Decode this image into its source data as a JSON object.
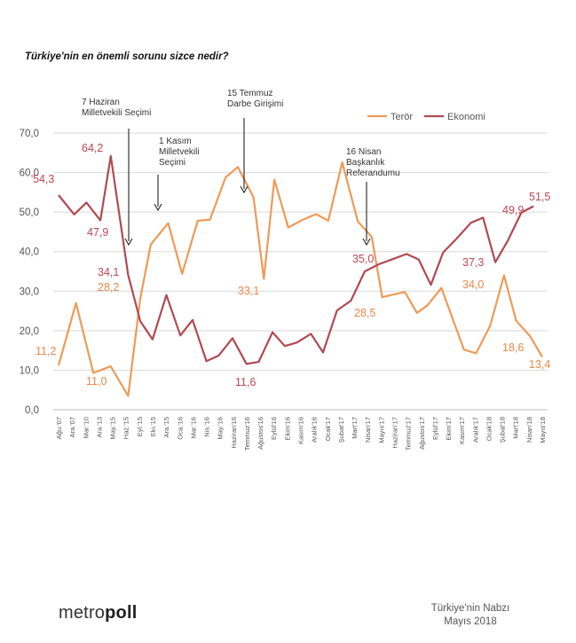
{
  "page_title": "Türkiye'nin en önemli sorunu sizce nedir?",
  "brand": {
    "part1": "metro",
    "part2": "poll"
  },
  "footer": {
    "line1": "Türkiye'nin Nabzı",
    "line2": "Mayıs 2018"
  },
  "colors": {
    "teror": "#ee9a58",
    "ekonomi": "#b04a52",
    "grid": "#d9d9d9",
    "label_teror": "#e9874a",
    "label_ekonomi": "#c04652"
  },
  "chart_data": {
    "type": "line",
    "title": "Türkiye'nin en önemli sorunu sizce nedir?",
    "ylim": [
      0,
      70
    ],
    "yticks": [
      "0,0",
      "10,0",
      "20,0",
      "30,0",
      "40,0",
      "50,0",
      "60,0",
      "70,0"
    ],
    "grid": true,
    "legend": "top-right",
    "categories": [
      "Ağu.'07",
      "Ara.'07",
      "Mar.'10",
      "Ara.'13",
      "May.'15",
      "Haz.'15",
      "Eyl.'15",
      "Eki.'15",
      "Ara.'15",
      "Oca.'16",
      "Mar.'16",
      "Nis.'16",
      "May.'16",
      "Haziran'16",
      "Temmuz'16",
      "Ağustos'16",
      "Eylül'16",
      "Ekim'16",
      "Kasım'16",
      "Aralık'16",
      "Ocak'17",
      "Şubat'17",
      "Mart'17",
      "Nisan'17",
      "Mayıs'17",
      "Haziran'17",
      "Temmuz'17",
      "Ağustos'17",
      "Eylül'17",
      "Ekim'17",
      "Kasım'17",
      "Aralık'17",
      "Ocak'18",
      "Şubat'18",
      "Mart'18",
      "Nisan'18",
      "Mayıs'18"
    ],
    "category_ticks": [
      0,
      1,
      2,
      3,
      4,
      5,
      6,
      7,
      8,
      9,
      10,
      11,
      12,
      13,
      14,
      15,
      16,
      17,
      18,
      19,
      20,
      21,
      22,
      23,
      24,
      25,
      26,
      27,
      28,
      29,
      30,
      31,
      32,
      33,
      34,
      35,
      36
    ],
    "x_positions": [
      0,
      1,
      2,
      3,
      4,
      5,
      6,
      7,
      8,
      9,
      10,
      11,
      12,
      13,
      14,
      15,
      16,
      17,
      18,
      19,
      20,
      21,
      22,
      23,
      24,
      25,
      26,
      27,
      28,
      29,
      30,
      31,
      32,
      33,
      34,
      35,
      36
    ],
    "series": [
      {
        "name": "Terör",
        "color": "#ee9a58",
        "points": [
          [
            0,
            11.2
          ],
          [
            1,
            27.0
          ],
          [
            2,
            9.3
          ],
          [
            3,
            11.0
          ],
          [
            4,
            3.5
          ],
          [
            4.7,
            28.2
          ],
          [
            5.3,
            41.8
          ],
          [
            6.3,
            47.2
          ],
          [
            7.1,
            34.4
          ],
          [
            8,
            47.8
          ],
          [
            8.7,
            48.1
          ],
          [
            9.6,
            58.8
          ],
          [
            10.3,
            61.4
          ],
          [
            11.2,
            53.8
          ],
          [
            11.8,
            33.1
          ],
          [
            12.4,
            58.2
          ],
          [
            13.2,
            46.1
          ],
          [
            14,
            48.0
          ],
          [
            14.8,
            49.5
          ],
          [
            15.5,
            47.8
          ],
          [
            16.3,
            62.6
          ],
          [
            17.2,
            47.6
          ],
          [
            18.0,
            43.7
          ],
          [
            18.6,
            28.5
          ],
          [
            19.9,
            29.8
          ],
          [
            20.6,
            24.5
          ],
          [
            21.2,
            26.4
          ],
          [
            22.0,
            30.8
          ],
          [
            23.3,
            15.2
          ],
          [
            24.0,
            14.3
          ],
          [
            24.8,
            21.2
          ],
          [
            25.6,
            34.0
          ],
          [
            26.3,
            22.5
          ],
          [
            27.1,
            18.6
          ],
          [
            27.8,
            13.4
          ]
        ]
      },
      {
        "name": "Ekonomi",
        "color": "#b04a52",
        "points": [
          [
            0,
            54.3
          ],
          [
            0.9,
            49.4
          ],
          [
            1.6,
            52.4
          ],
          [
            2.4,
            47.9
          ],
          [
            3.0,
            64.2
          ],
          [
            4.0,
            34.1
          ],
          [
            4.7,
            22.4
          ],
          [
            5.4,
            17.8
          ],
          [
            6.2,
            29.0
          ],
          [
            7.0,
            18.8
          ],
          [
            7.7,
            22.7
          ],
          [
            8.5,
            12.3
          ],
          [
            9.2,
            13.7
          ],
          [
            10.0,
            18.1
          ],
          [
            10.8,
            11.6
          ],
          [
            11.5,
            12.1
          ],
          [
            12.3,
            19.6
          ],
          [
            13.0,
            16.1
          ],
          [
            13.7,
            17.0
          ],
          [
            14.5,
            19.2
          ],
          [
            15.2,
            14.5
          ],
          [
            16.0,
            25.1
          ],
          [
            16.8,
            27.6
          ],
          [
            17.6,
            35.0
          ],
          [
            18.4,
            36.8
          ],
          [
            19.2,
            38.1
          ],
          [
            20.0,
            39.4
          ],
          [
            20.7,
            38.0
          ],
          [
            21.4,
            31.6
          ],
          [
            22.1,
            39.8
          ],
          [
            22.9,
            43.4
          ],
          [
            23.7,
            47.3
          ],
          [
            24.4,
            48.6
          ],
          [
            25.1,
            37.3
          ],
          [
            25.8,
            42.6
          ],
          [
            26.6,
            49.9
          ],
          [
            27.3,
            51.5
          ]
        ]
      }
    ],
    "data_labels": [
      {
        "series": "Ekonomi",
        "text": "54,3"
      },
      {
        "series": "Ekonomi",
        "text": "64,2"
      },
      {
        "series": "Ekonomi",
        "text": "47,9"
      },
      {
        "series": "Ekonomi",
        "text": "34,1"
      },
      {
        "series": "Terör",
        "text": "28,2"
      },
      {
        "series": "Terör",
        "text": "11,2"
      },
      {
        "series": "Terör",
        "text": "11,0"
      },
      {
        "series": "Terör",
        "text": "33,1"
      },
      {
        "series": "Ekonomi",
        "text": "11,6"
      },
      {
        "series": "Ekonomi",
        "text": "35,0"
      },
      {
        "series": "Terör",
        "text": "28,5"
      },
      {
        "series": "Ekonomi",
        "text": "37,3"
      },
      {
        "series": "Terör",
        "text": "34,0"
      },
      {
        "series": "Ekonomi",
        "text": "49,9"
      },
      {
        "series": "Ekonomi",
        "text": "51,5"
      },
      {
        "series": "Terör",
        "text": "18,6"
      },
      {
        "series": "Terör",
        "text": "13,4"
      }
    ],
    "annotations": [
      {
        "lines": [
          "7 Haziran",
          "Milletvekili Seçimi"
        ]
      },
      {
        "lines": [
          "1 Kasım",
          "Milletvekili",
          "Seçimi"
        ]
      },
      {
        "lines": [
          "15 Temmuz",
          "Darbe Girişimi"
        ]
      },
      {
        "lines": [
          "16 Nisan",
          "Başkanlık",
          "Referandumu"
        ]
      }
    ]
  }
}
